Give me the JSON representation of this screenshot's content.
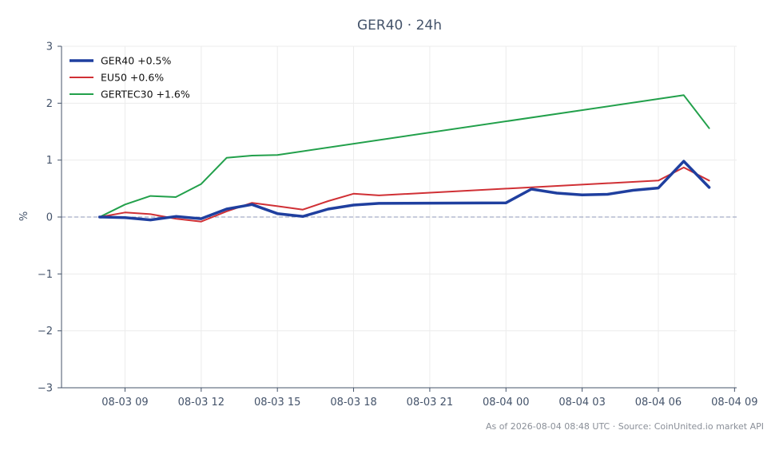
{
  "chart_data": {
    "type": "line",
    "title": "GER40 · 24h",
    "xlabel": "",
    "ylabel": "%",
    "ylim": [
      -3,
      3
    ],
    "yticks": [
      3,
      2,
      1,
      0,
      -1,
      -2,
      -3
    ],
    "ytick_labels": [
      "3",
      "2",
      "1",
      "0",
      "−1",
      "−2",
      "−3"
    ],
    "xlim": [
      "2026-08-03 06:30",
      "2026-08-04 09:05"
    ],
    "xticks": [
      "2026-08-03 09:00",
      "2026-08-03 12:00",
      "2026-08-03 15:00",
      "2026-08-03 18:00",
      "2026-08-03 21:00",
      "2026-08-04 00:00",
      "2026-08-04 03:00",
      "2026-08-04 06:00",
      "2026-08-04 09:00"
    ],
    "xtick_labels": [
      "08-03 09",
      "08-03 12",
      "08-03 15",
      "08-03 18",
      "08-03 21",
      "08-04 00",
      "08-04 03",
      "08-04 06",
      "08-04 09"
    ],
    "grid": true,
    "zero_line": true,
    "legend_position": "top-left",
    "series": [
      {
        "name": "GER40 +0.5%",
        "color": "#1f3f9f",
        "points": [
          [
            "2026-08-03 08:00",
            0.0
          ],
          [
            "2026-08-03 09:00",
            -0.01
          ],
          [
            "2026-08-03 10:00",
            -0.05
          ],
          [
            "2026-08-03 11:00",
            0.01
          ],
          [
            "2026-08-03 12:00",
            -0.03
          ],
          [
            "2026-08-03 13:00",
            0.14
          ],
          [
            "2026-08-03 14:00",
            0.22
          ],
          [
            "2026-08-03 15:00",
            0.06
          ],
          [
            "2026-08-03 16:00",
            0.01
          ],
          [
            "2026-08-03 17:00",
            0.14
          ],
          [
            "2026-08-03 18:00",
            0.21
          ],
          [
            "2026-08-03 19:00",
            0.24
          ],
          [
            "2026-08-04 00:00",
            0.25
          ],
          [
            "2026-08-04 01:00",
            0.49
          ],
          [
            "2026-08-04 02:00",
            0.42
          ],
          [
            "2026-08-04 03:00",
            0.39
          ],
          [
            "2026-08-04 04:00",
            0.4
          ],
          [
            "2026-08-04 05:00",
            0.47
          ],
          [
            "2026-08-04 06:00",
            0.51
          ],
          [
            "2026-08-04 07:00",
            0.98
          ],
          [
            "2026-08-04 08:00",
            0.52
          ]
        ]
      },
      {
        "name": "EU50 +0.6%",
        "color": "#d03035",
        "points": [
          [
            "2026-08-03 08:00",
            0.0
          ],
          [
            "2026-08-03 09:00",
            0.08
          ],
          [
            "2026-08-03 10:00",
            0.05
          ],
          [
            "2026-08-03 11:00",
            -0.03
          ],
          [
            "2026-08-03 12:00",
            -0.08
          ],
          [
            "2026-08-03 13:00",
            0.1
          ],
          [
            "2026-08-03 14:00",
            0.25
          ],
          [
            "2026-08-03 15:00",
            0.19
          ],
          [
            "2026-08-03 16:00",
            0.13
          ],
          [
            "2026-08-03 17:00",
            0.28
          ],
          [
            "2026-08-03 18:00",
            0.41
          ],
          [
            "2026-08-03 19:00",
            0.38
          ],
          [
            "2026-08-04 06:00",
            0.64
          ],
          [
            "2026-08-04 07:00",
            0.87
          ],
          [
            "2026-08-04 08:00",
            0.64
          ]
        ]
      },
      {
        "name": "GERTEC30 +1.6%",
        "color": "#22a04b",
        "points": [
          [
            "2026-08-03 08:00",
            0.0
          ],
          [
            "2026-08-03 09:00",
            0.22
          ],
          [
            "2026-08-03 10:00",
            0.37
          ],
          [
            "2026-08-03 11:00",
            0.35
          ],
          [
            "2026-08-03 12:00",
            0.58
          ],
          [
            "2026-08-03 13:00",
            1.04
          ],
          [
            "2026-08-03 14:00",
            1.08
          ],
          [
            "2026-08-03 15:00",
            1.09
          ],
          [
            "2026-08-04 07:00",
            2.14
          ],
          [
            "2026-08-04 08:00",
            1.56
          ]
        ]
      }
    ],
    "footer": "As of 2026-08-04 08:48 UTC · Source: CoinUnited.io market API"
  }
}
